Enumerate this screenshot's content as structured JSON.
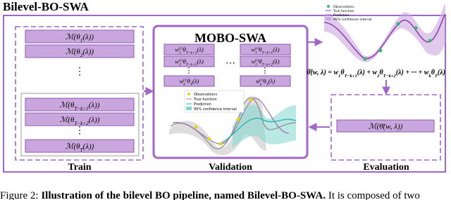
{
  "title": "Bilevel-BO-SWA",
  "train": {
    "label": "Train",
    "ellipsis": "⋮",
    "models": [
      [
        {
          "text": "ℳ(θ",
          "sub": "1"
        },
        {
          "text": "(λ))"
        }
      ],
      [
        {
          "text": "ℳ(θ",
          "sub": "2"
        },
        {
          "text": "(λ))"
        }
      ],
      [
        {
          "text": "ℳ(θ",
          "sub": "T−k+1"
        },
        {
          "text": "(λ))"
        }
      ],
      [
        {
          "text": "ℳ(θ",
          "sub": "T−k+2"
        },
        {
          "text": "(λ))"
        }
      ],
      [
        {
          "text": "ℳ(θ",
          "sub": "T"
        },
        {
          "text": "(λ))"
        }
      ]
    ]
  },
  "validation": {
    "label": "Validation",
    "title": "MOBO-SWA",
    "ellipsis": "⋮",
    "dots": "⋯",
    "columns": [
      [
        [
          {
            "text": "w",
            "sub": "1",
            "sup": "(1)"
          },
          {
            "text": "θ",
            "sub": "T−k+1"
          },
          {
            "text": "(λ)"
          }
        ],
        [
          {
            "text": "w",
            "sub": "2",
            "sup": "(1)"
          },
          {
            "text": "θ",
            "sub": "T−k+2"
          },
          {
            "text": "(λ)"
          }
        ],
        [
          {
            "text": "w",
            "sub": "k",
            "sup": "(1)"
          },
          {
            "text": "θ",
            "sub": "T"
          },
          {
            "text": "(λ)"
          }
        ]
      ],
      [
        [
          {
            "text": "w",
            "sub": "1",
            "sup": "(r)"
          },
          {
            "text": "θ",
            "sub": "T−k+1"
          },
          {
            "text": "(λ)"
          }
        ],
        [
          {
            "text": "w",
            "sub": "2",
            "sup": "(r)"
          },
          {
            "text": "θ",
            "sub": "T−k+2"
          },
          {
            "text": "(λ)"
          }
        ],
        [
          {
            "text": "w",
            "sub": "k",
            "sup": "(r)"
          },
          {
            "text": "θ",
            "sub": "T"
          },
          {
            "text": "(λ)"
          }
        ]
      ]
    ],
    "legend": [
      "Observations",
      "True function",
      "Prediction",
      "95% confidence interval"
    ]
  },
  "evaluation": {
    "label": "Evaluation",
    "model": [
      {
        "text": "ℳ(θ̄(w, λ))"
      }
    ],
    "legend": [
      "Observations",
      "True function",
      "Prediction",
      "95% confidence interval"
    ],
    "formula": [
      {
        "text": "θ̄(w, λ) = w",
        "sub": "1"
      },
      {
        "text": "θ",
        "sub": "T−k+1"
      },
      {
        "text": "(λ) + w",
        "sub": "2"
      },
      {
        "text": "θ",
        "sub": "T−k+2"
      },
      {
        "text": "(λ) + ··· + w",
        "sub": "k"
      },
      {
        "text": "θ",
        "sub": "T"
      },
      {
        "text": "(λ)"
      }
    ]
  },
  "caption": [
    {
      "text": "Figure 2: "
    },
    {
      "text": "Illustration of the bilevel BO pipeline, named Bilevel-BO-SWA."
    },
    {
      "text": " It is composed of two"
    }
  ]
}
